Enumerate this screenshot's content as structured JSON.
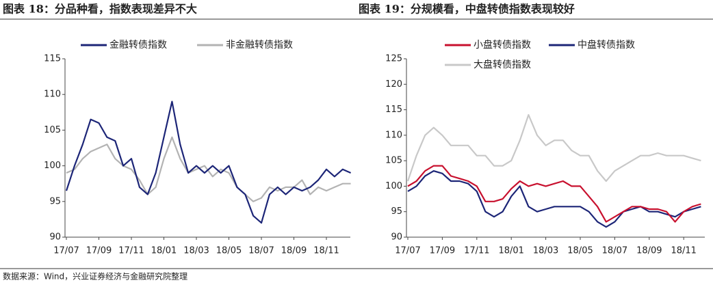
{
  "chart_data": [
    {
      "type": "line",
      "title": "图表 18：分品种看，指数表现差异不大",
      "categories": [
        "17/07",
        null,
        null,
        null,
        "17/09",
        null,
        null,
        null,
        "17/11",
        null,
        null,
        null,
        "18/01",
        null,
        null,
        null,
        "18/03",
        null,
        null,
        null,
        "18/05",
        null,
        null,
        null,
        "18/07",
        null,
        null,
        null,
        "18/09",
        null,
        null,
        null,
        "18/11",
        null,
        null,
        null
      ],
      "series": [
        {
          "name": "金融转债指数",
          "color": "#1c2577",
          "values": [
            96.5,
            100,
            103,
            106.5,
            106,
            104,
            103.5,
            100,
            101,
            97,
            96,
            99,
            104,
            109,
            103,
            99,
            100,
            99,
            100,
            99,
            100,
            97,
            96,
            93,
            92,
            96,
            97,
            96,
            97,
            96.5,
            97,
            98,
            99.5,
            98.5,
            99.5,
            99
          ]
        },
        {
          "name": "非金融转债指数",
          "color": "#b3b3b3",
          "values": [
            99,
            99.5,
            101,
            102,
            102.5,
            103,
            101,
            100,
            99.5,
            98,
            96,
            97,
            101,
            104,
            101,
            99,
            99.5,
            100,
            98.5,
            99.5,
            99,
            97,
            96,
            95,
            95.5,
            97,
            96.5,
            97,
            97,
            98,
            96,
            97,
            96.5,
            97,
            97.5,
            97.5
          ]
        }
      ],
      "ylim": [
        90,
        115
      ],
      "yticks": [
        90,
        95,
        100,
        105,
        110,
        115
      ],
      "legend": "top"
    },
    {
      "type": "line",
      "title": "图表 19：分规模看，中盘转债指数表现较好",
      "categories": [
        "17/07",
        null,
        null,
        null,
        "17/09",
        null,
        null,
        null,
        "17/11",
        null,
        null,
        null,
        "18/01",
        null,
        null,
        null,
        "18/03",
        null,
        null,
        null,
        "18/05",
        null,
        null,
        null,
        "18/07",
        null,
        null,
        null,
        "18/09",
        null,
        null,
        null,
        "18/11",
        null,
        null
      ],
      "series": [
        {
          "name": "小盘转债指数",
          "color": "#c8102e",
          "values": [
            100,
            101,
            103,
            104,
            104,
            102,
            101.5,
            101,
            100,
            97,
            97,
            97.5,
            99.5,
            101,
            100,
            100.5,
            100,
            100.5,
            101,
            100,
            100,
            98,
            96,
            93,
            94,
            95,
            96,
            96,
            95.5,
            95.5,
            95,
            93,
            95,
            96,
            96.5
          ]
        },
        {
          "name": "中盘转债指数",
          "color": "#1c2577",
          "values": [
            99,
            100,
            102,
            103,
            102.5,
            101,
            101,
            100.5,
            99,
            95,
            94,
            95,
            98,
            100,
            96,
            95,
            95.5,
            96,
            96,
            96,
            96,
            95,
            93,
            92,
            93,
            95,
            95.5,
            96,
            95,
            95,
            94.5,
            94,
            95,
            95.5,
            96
          ]
        },
        {
          "name": "大盘转债指数",
          "color": "#c8c8c8",
          "values": [
            101,
            106,
            110,
            111.5,
            110,
            108,
            108,
            108,
            106,
            106,
            104,
            104,
            105,
            109,
            114,
            110,
            108,
            109,
            109,
            107,
            106,
            106,
            103,
            101,
            103,
            104,
            105,
            106,
            106,
            106.5,
            106,
            106,
            106,
            105.5,
            105
          ]
        }
      ],
      "ylim": [
        90,
        125
      ],
      "yticks": [
        90,
        95,
        100,
        105,
        110,
        115,
        120,
        125
      ],
      "legend": "top"
    }
  ],
  "source": "数据来源：Wind，兴业证券经济与金融研究院整理"
}
